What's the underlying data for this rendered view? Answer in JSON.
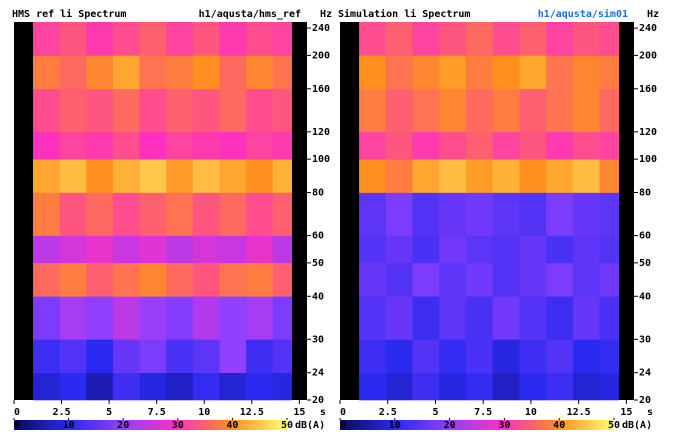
{
  "chart_data": [
    {
      "type": "heatmap",
      "title": "HMS ref li Spectrum",
      "source": "h1/aqusta/hms_ref",
      "source_color": "#000000",
      "ylabel": "Hz",
      "xlabel": "s",
      "log_y": true,
      "xlim": [
        0,
        15.4
      ],
      "xticks": [
        0,
        2.5,
        5,
        7.5,
        10,
        12.5,
        15
      ],
      "ylim": [
        20,
        250
      ],
      "yticks": [
        20,
        24,
        30,
        40,
        50,
        60,
        80,
        100,
        120,
        160,
        200,
        240
      ],
      "x_bins": [
        1,
        2.4,
        3.8,
        5.2,
        6.6,
        8,
        9.4,
        10.8,
        12.2,
        13.6,
        14.6
      ],
      "y_bins": [
        20,
        24,
        30,
        40,
        50,
        60,
        80,
        100,
        120,
        160,
        200,
        250
      ],
      "z": [
        [
          8,
          10,
          6,
          12,
          9,
          7,
          11,
          8,
          10,
          9
        ],
        [
          12,
          14,
          10,
          16,
          18,
          13,
          15,
          20,
          12,
          14
        ],
        [
          18,
          22,
          20,
          24,
          21,
          19,
          23,
          20,
          22,
          18
        ],
        [
          36,
          38,
          35,
          37,
          39,
          36,
          34,
          37,
          38,
          35
        ],
        [
          24,
          26,
          28,
          25,
          27,
          24,
          26,
          25,
          28,
          24
        ],
        [
          38,
          34,
          36,
          33,
          35,
          37,
          34,
          36,
          33,
          35
        ],
        [
          42,
          44,
          40,
          43,
          45,
          41,
          44,
          42,
          40,
          43
        ],
        [
          30,
          32,
          31,
          33,
          30,
          32,
          31,
          30,
          32,
          31
        ],
        [
          33,
          35,
          34,
          36,
          33,
          35,
          34,
          36,
          33,
          34
        ],
        [
          38,
          36,
          39,
          42,
          37,
          38,
          40,
          36,
          39,
          37
        ],
        [
          32,
          34,
          31,
          33,
          35,
          32,
          34,
          31,
          33,
          32
        ]
      ],
      "colorscale": [
        "#0a0a60",
        "#2a2af0",
        "#9040ff",
        "#ff30c0",
        "#ff9020",
        "#ffff70"
      ],
      "colorbar": {
        "lim": [
          0,
          50
        ],
        "ticks": [
          0,
          10,
          20,
          30,
          40,
          50
        ],
        "label": "dB(A)"
      }
    },
    {
      "type": "heatmap",
      "title": "Simulation li Spectrum",
      "source": "h1/aqusta/sim01",
      "source_color": "#1a6ee0",
      "ylabel": "Hz",
      "xlabel": "s",
      "log_y": true,
      "xlim": [
        0,
        15.4
      ],
      "xticks": [
        0,
        2.5,
        5,
        7.5,
        10,
        12.5,
        15
      ],
      "ylim": [
        20,
        250
      ],
      "yticks": [
        20,
        24,
        30,
        40,
        50,
        60,
        80,
        100,
        120,
        160,
        200,
        240
      ],
      "x_bins": [
        1,
        2.4,
        3.8,
        5.2,
        6.6,
        8,
        9.4,
        10.8,
        12.2,
        13.6,
        14.6
      ],
      "y_bins": [
        20,
        24,
        30,
        40,
        50,
        60,
        80,
        100,
        120,
        160,
        200,
        250
      ],
      "z": [
        [
          10,
          8,
          12,
          9,
          11,
          7,
          10,
          12,
          8,
          9
        ],
        [
          12,
          10,
          14,
          11,
          13,
          9,
          12,
          14,
          10,
          11
        ],
        [
          14,
          16,
          12,
          15,
          13,
          17,
          14,
          12,
          16,
          13
        ],
        [
          16,
          14,
          18,
          15,
          17,
          14,
          16,
          18,
          15,
          17
        ],
        [
          14,
          16,
          13,
          17,
          15,
          14,
          16,
          13,
          15,
          14
        ],
        [
          15,
          18,
          14,
          16,
          17,
          15,
          14,
          18,
          16,
          15
        ],
        [
          40,
          38,
          42,
          44,
          41,
          43,
          40,
          42,
          44,
          39
        ],
        [
          32,
          34,
          31,
          33,
          35,
          32,
          34,
          31,
          33,
          32
        ],
        [
          38,
          35,
          37,
          39,
          36,
          38,
          35,
          37,
          39,
          36
        ],
        [
          40,
          37,
          39,
          41,
          38,
          40,
          42,
          37,
          39,
          38
        ],
        [
          33,
          35,
          32,
          34,
          36,
          33,
          35,
          32,
          34,
          33
        ]
      ],
      "colorscale": [
        "#0a0a60",
        "#2a2af0",
        "#9040ff",
        "#ff30c0",
        "#ff9020",
        "#ffff70"
      ],
      "colorbar": {
        "lim": [
          0,
          50
        ],
        "ticks": [
          0,
          10,
          20,
          30,
          40,
          50
        ],
        "label": "dB(A)"
      }
    }
  ]
}
